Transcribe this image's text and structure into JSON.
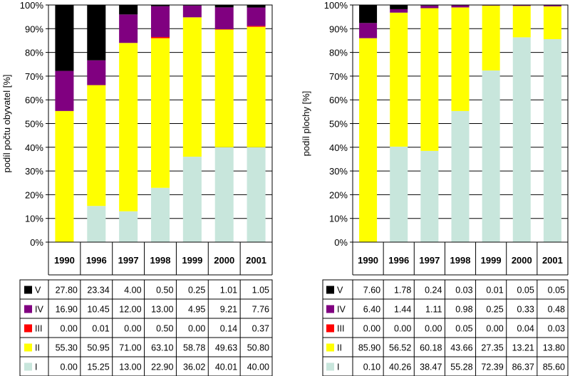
{
  "chart_data": [
    {
      "type": "bar",
      "stacked": true,
      "percent": true,
      "ylabel": "podíl počtu obyvatel [%]",
      "ylim": [
        0,
        100
      ],
      "yticks": [
        "0%",
        "10%",
        "20%",
        "30%",
        "40%",
        "50%",
        "60%",
        "70%",
        "80%",
        "90%",
        "100%"
      ],
      "categories": [
        "1990",
        "1996",
        "1997",
        "1998",
        "1999",
        "2000",
        "2001"
      ],
      "grid": true,
      "legend": "data-table",
      "series": [
        {
          "name": "V",
          "color": "#000000",
          "values": [
            "27.80",
            "23.34",
            "4.00",
            "0.50",
            "0.25",
            "1.01",
            "1.05"
          ]
        },
        {
          "name": "IV",
          "color": "#800080",
          "values": [
            "16.90",
            "10.45",
            "12.00",
            "13.00",
            "4.95",
            "9.21",
            "7.76"
          ]
        },
        {
          "name": "III",
          "color": "#ff0000",
          "values": [
            "0.00",
            "0.01",
            "0.00",
            "0.50",
            "0.00",
            "0.14",
            "0.37"
          ]
        },
        {
          "name": "II",
          "color": "#ffff00",
          "values": [
            "55.30",
            "50.95",
            "71.00",
            "63.10",
            "58.78",
            "49.63",
            "50.80"
          ]
        },
        {
          "name": "I",
          "color": "#c8e6dc",
          "values": [
            "0.00",
            "15.25",
            "13.00",
            "22.90",
            "36.02",
            "40.01",
            "40.00"
          ]
        }
      ]
    },
    {
      "type": "bar",
      "stacked": true,
      "percent": true,
      "ylabel": "podíl plochy [%]",
      "ylim": [
        0,
        100
      ],
      "yticks": [
        "0%",
        "10%",
        "20%",
        "30%",
        "40%",
        "50%",
        "60%",
        "70%",
        "80%",
        "90%",
        "100%"
      ],
      "categories": [
        "1990",
        "1996",
        "1997",
        "1998",
        "1999",
        "2000",
        "2001"
      ],
      "grid": true,
      "legend": "data-table",
      "series": [
        {
          "name": "V",
          "color": "#000000",
          "values": [
            "7.60",
            "1.78",
            "0.24",
            "0.03",
            "0.01",
            "0.05",
            "0.05"
          ]
        },
        {
          "name": "IV",
          "color": "#800080",
          "values": [
            "6.40",
            "1.44",
            "1.11",
            "0.98",
            "0.25",
            "0.33",
            "0.48"
          ]
        },
        {
          "name": "III",
          "color": "#ff0000",
          "values": [
            "0.00",
            "0.00",
            "0.00",
            "0.05",
            "0.00",
            "0.04",
            "0.03"
          ]
        },
        {
          "name": "II",
          "color": "#ffff00",
          "values": [
            "85.90",
            "56.52",
            "60.18",
            "43.66",
            "27.35",
            "13.21",
            "13.80"
          ]
        },
        {
          "name": "I",
          "color": "#c8e6dc",
          "values": [
            "0.10",
            "40.26",
            "38.47",
            "55.28",
            "72.39",
            "86.37",
            "85.60"
          ]
        }
      ]
    }
  ]
}
